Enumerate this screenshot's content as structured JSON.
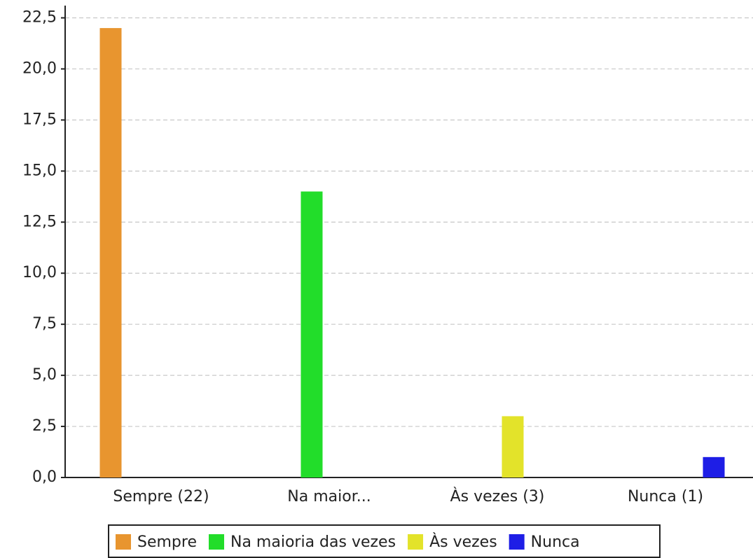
{
  "chart_data": {
    "type": "bar",
    "categories": [
      "Sempre (22)",
      "Na maior...",
      "Às vezes (3)",
      "Nunca (1)"
    ],
    "series": [
      {
        "name": "Sempre",
        "color": "#e8952f",
        "values": [
          22,
          0,
          0,
          0
        ]
      },
      {
        "name": "Na maioria das vezes",
        "color": "#22dd2a",
        "values": [
          0,
          14,
          0,
          0
        ]
      },
      {
        "name": "Às vezes",
        "color": "#e3e32a",
        "values": [
          0,
          0,
          3,
          0
        ]
      },
      {
        "name": "Nunca",
        "color": "#1e1ee6",
        "values": [
          0,
          0,
          0,
          1
        ]
      }
    ],
    "ylim": [
      0,
      23.1
    ],
    "yticks": [
      {
        "value": 0,
        "label": "0,0"
      },
      {
        "value": 2.5,
        "label": "2,5"
      },
      {
        "value": 5,
        "label": "5,0"
      },
      {
        "value": 7.5,
        "label": "7,5"
      },
      {
        "value": 10,
        "label": "10,0"
      },
      {
        "value": 12.5,
        "label": "12,5"
      },
      {
        "value": 15,
        "label": "15,0"
      },
      {
        "value": 17.5,
        "label": "17,5"
      },
      {
        "value": 20,
        "label": "20,0"
      },
      {
        "value": 22.5,
        "label": "22,5"
      }
    ],
    "grid": true,
    "legend": "bottom"
  }
}
